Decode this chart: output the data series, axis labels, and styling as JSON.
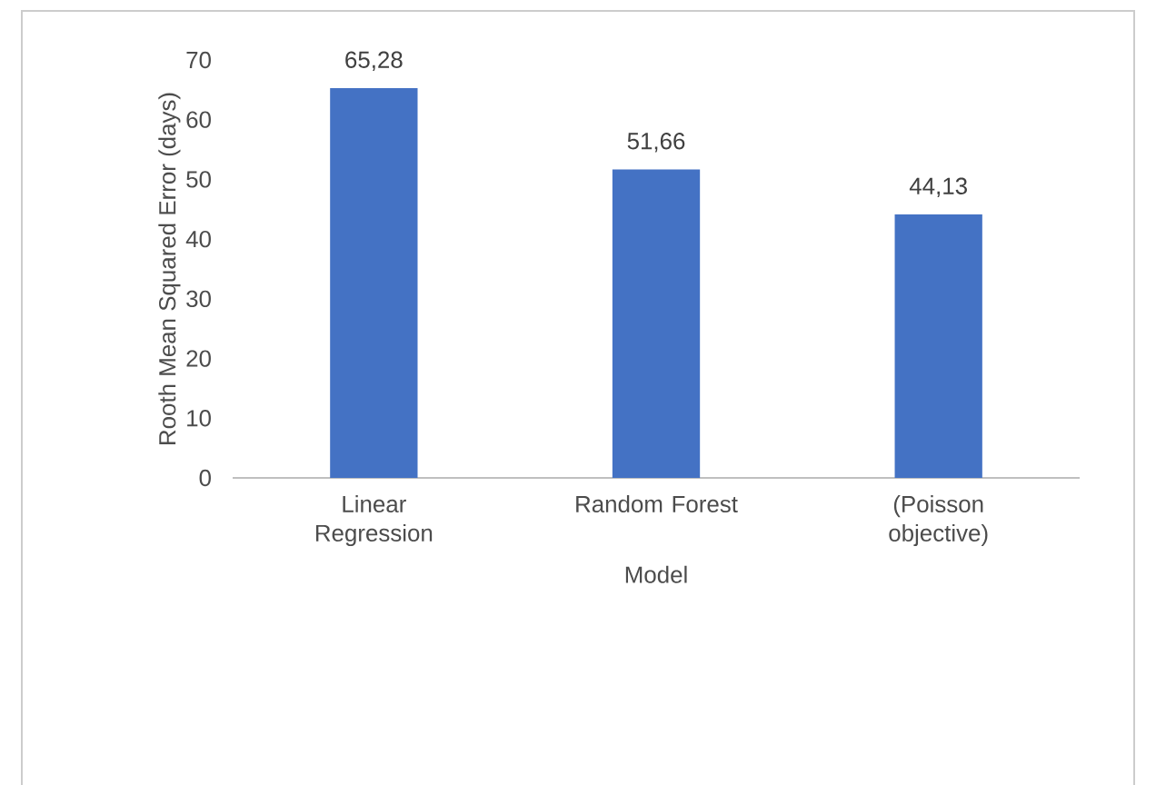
{
  "chart_data": {
    "type": "bar",
    "categories": [
      "Linear Regression",
      "Random Forest",
      "(Poisson objective)"
    ],
    "values": [
      65.28,
      51.66,
      44.13
    ],
    "value_labels": [
      "65,28",
      "51,66",
      "44,13"
    ],
    "color": "#4472c4",
    "ylim": [
      0,
      70
    ],
    "yticks": [
      0,
      10,
      20,
      30,
      40,
      50,
      60,
      70
    ],
    "xlabel": "Model",
    "ylabel": "Rooth Mean Squared Error (days)"
  }
}
